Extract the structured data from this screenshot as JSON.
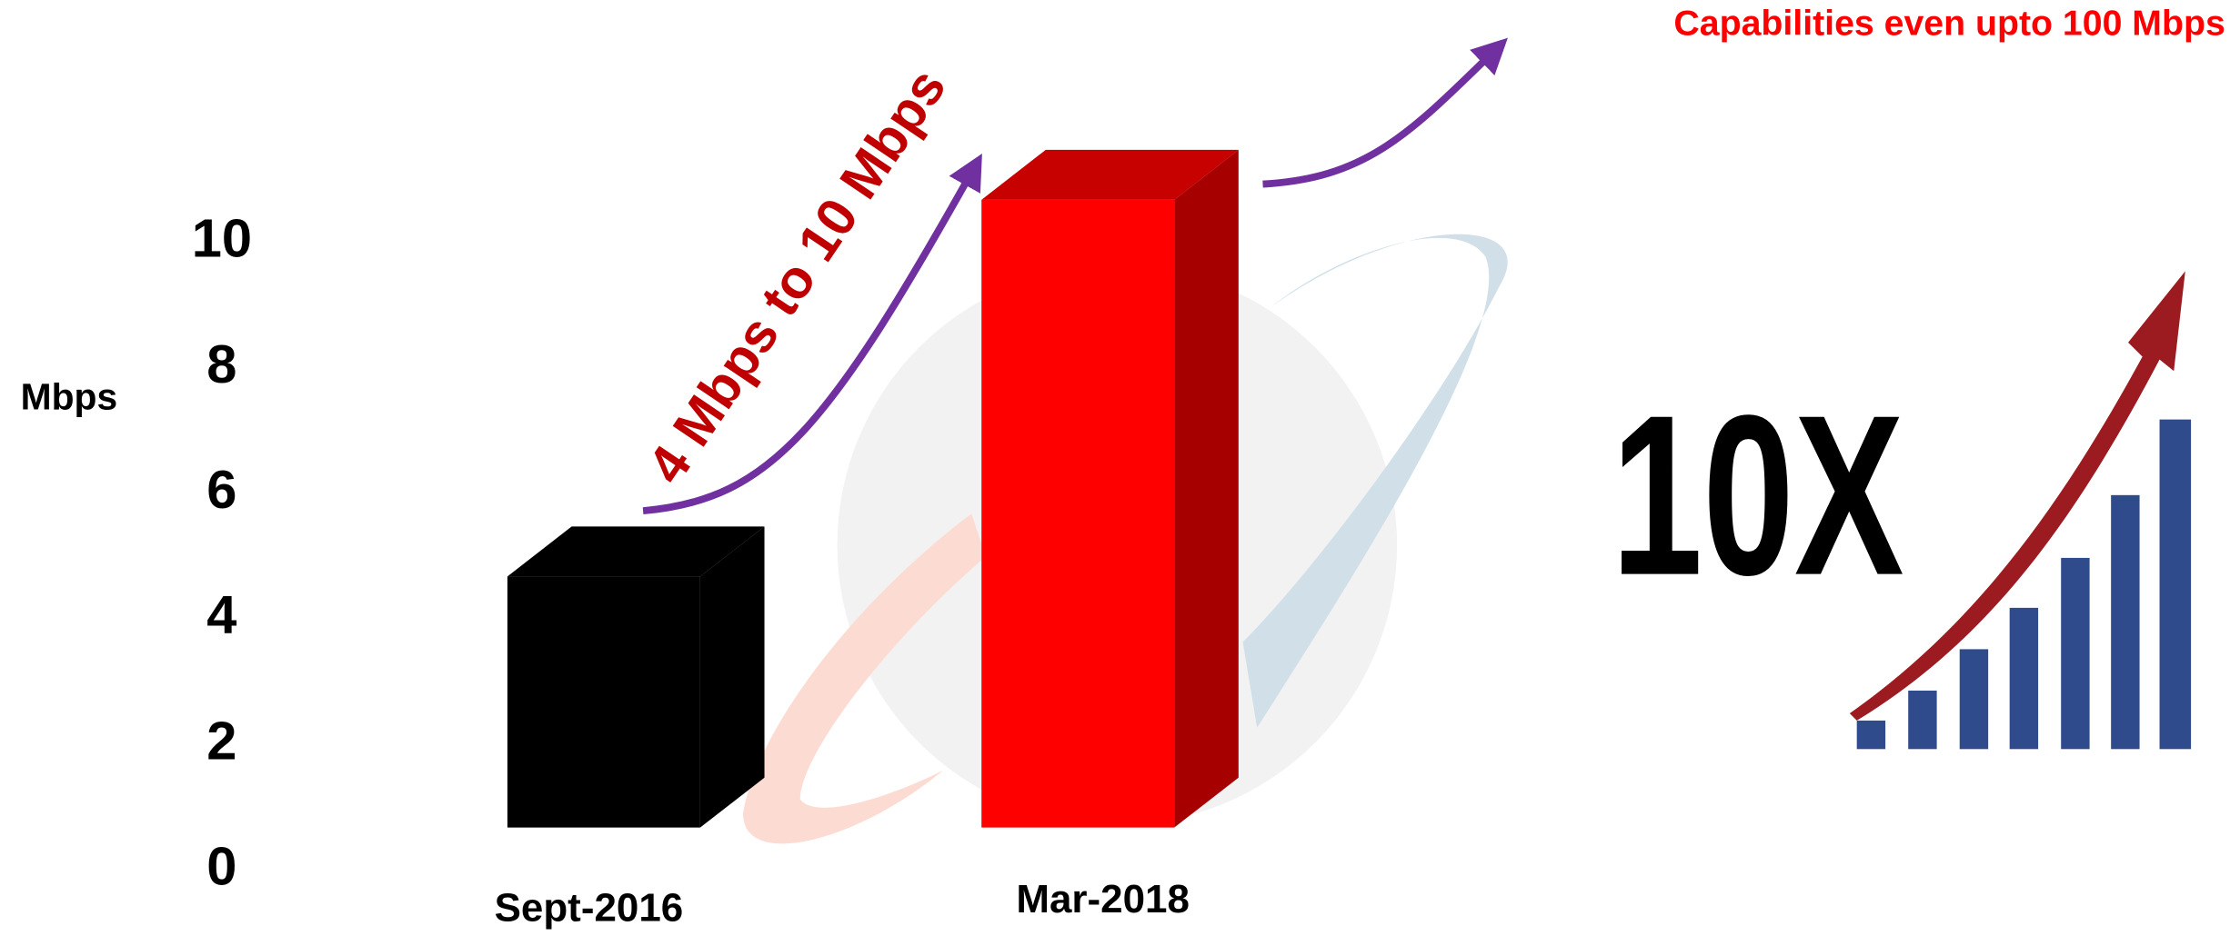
{
  "chart_data": {
    "type": "bar",
    "ylabel": "Mbps",
    "categories": [
      "Sept-2016",
      "Mar-2018"
    ],
    "values": [
      4,
      10
    ],
    "colors": [
      "#000000",
      "#ff0000"
    ],
    "ylim": [
      0,
      10
    ],
    "yticks": [
      0,
      2,
      4,
      6,
      8,
      10
    ],
    "annotations": [
      "4 Mbps to 10 Mbps",
      "Capabilities even upto 100 Mbps",
      "10X"
    ]
  }
}
